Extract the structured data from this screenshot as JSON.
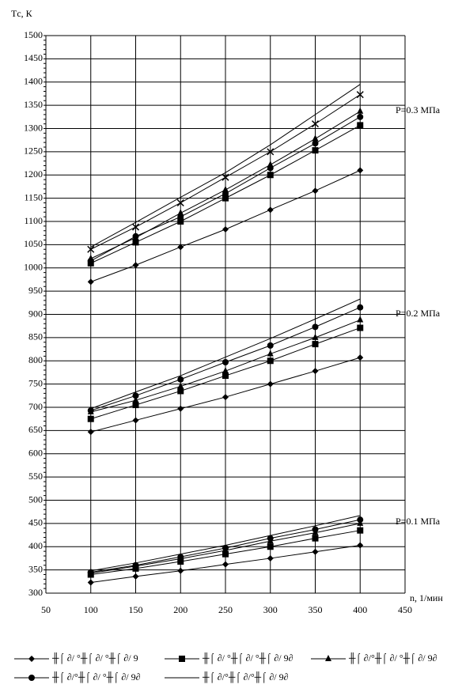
{
  "chart_data": {
    "type": "line",
    "y_label": "Tс, К",
    "x_label": "n, 1/мин",
    "annotations": [
      "P=0.3 МПа",
      "P=0.2 МПа",
      "P=0.1 МПа"
    ],
    "xlim": [
      50,
      450
    ],
    "xticks": [
      50,
      100,
      150,
      200,
      250,
      300,
      350,
      400,
      450
    ],
    "ylim": [
      300,
      1500
    ],
    "yticks": [
      300,
      350,
      400,
      450,
      500,
      550,
      600,
      650,
      700,
      750,
      800,
      850,
      900,
      950,
      1000,
      1050,
      1100,
      1150,
      1200,
      1250,
      1300,
      1350,
      1400,
      1450,
      1500
    ],
    "grid": true,
    "x": [
      100,
      150,
      200,
      250,
      300,
      350,
      400,
      100,
      150,
      200,
      250,
      300,
      350,
      400,
      100,
      150,
      200,
      250,
      300,
      350,
      400
    ],
    "series": [
      {
        "name": "╫⌠ ∂/ °╫⌠ ∂/ °╫⌠ ∂/ 9",
        "marker": "diamond",
        "color": "#000000",
        "values": [
          323,
          336,
          348,
          362,
          375,
          389,
          403,
          647,
          672,
          697,
          722,
          750,
          778,
          807,
          970,
          1006,
          1045,
          1083,
          1125,
          1166,
          1210
        ]
      },
      {
        "name": "╫⌠ ∂/ °╫⌠ ∂/ °╫⌠ ∂/ 9∂",
        "marker": "square",
        "color": "#000000",
        "values": [
          340,
          353,
          368,
          384,
          400,
          418,
          435,
          675,
          705,
          735,
          768,
          800,
          836,
          871,
          1010,
          1055,
          1100,
          1150,
          1200,
          1253,
          1307
        ]
      },
      {
        "name": "╫⌠ ∂/°╫⌠ ∂/ °╫⌠ ∂/ 9∂",
        "marker": "triangle",
        "color": "#000000",
        "values": [
          343,
          358,
          374,
          392,
          412,
          430,
          450,
          690,
          715,
          745,
          778,
          815,
          850,
          888,
          1020,
          1065,
          1118,
          1168,
          1222,
          1278,
          1337
        ]
      },
      {
        "name": "╫⌠ ∂/°╫⌠ ∂/ °╫⌠ ∂/ 9∂",
        "marker": "circle",
        "color": "#000000",
        "values": [
          345,
          360,
          378,
          397,
          418,
          437,
          458,
          693,
          725,
          760,
          797,
          833,
          873,
          915,
          1015,
          1068,
          1110,
          1160,
          1215,
          1268,
          1325
        ]
      },
      {
        "name": "╫⌠ ∂/°╫⌠ ∂/°╫⌠ ∂/ 9∂",
        "marker": "none",
        "color": "#000000",
        "values": [
          348,
          365,
          384,
          403,
          424,
          445,
          467,
          697,
          733,
          768,
          808,
          848,
          890,
          933,
          1045,
          1098,
          1152,
          1205,
          1265,
          1330,
          1395
        ]
      },
      {
        "marker": "cross",
        "color": "#000000",
        "values": [
          null,
          null,
          null,
          null,
          null,
          null,
          null,
          null,
          null,
          null,
          null,
          null,
          null,
          null,
          1040,
          1088,
          1140,
          1195,
          1250,
          1310,
          1373
        ]
      }
    ]
  }
}
